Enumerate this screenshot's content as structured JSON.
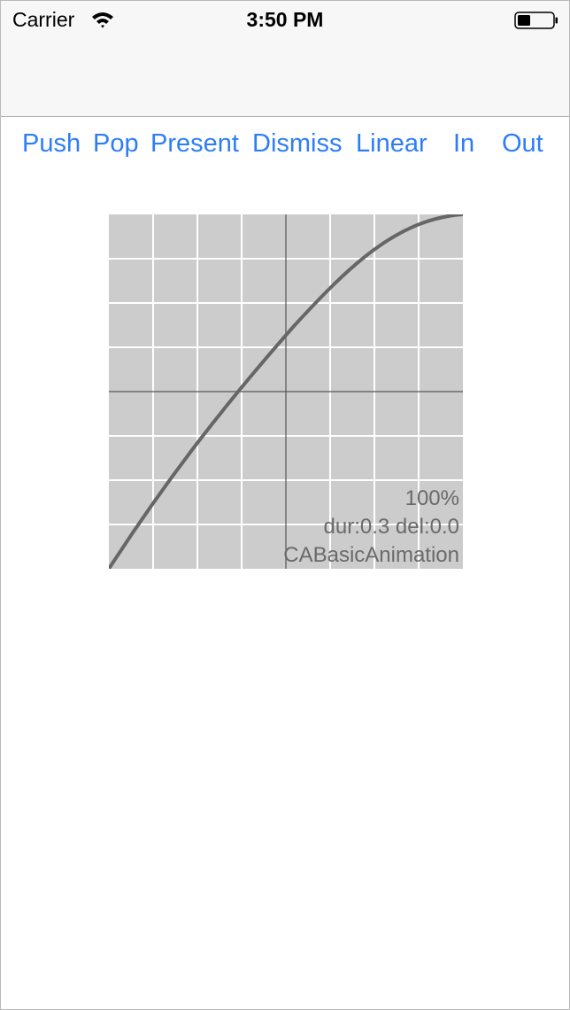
{
  "status_bar": {
    "carrier": "Carrier",
    "time": "3:50 PM",
    "icons": [
      "wifi-icon",
      "battery-icon"
    ]
  },
  "toolbar": {
    "buttons": [
      "Push",
      "Pop",
      "Present",
      "Dismiss",
      "Linear",
      "In",
      "Out"
    ],
    "color": "#2d7ef6"
  },
  "plot": {
    "percent": "100%",
    "timing": "dur:0.3 del:0.0",
    "animation_class": "CABasicAnimation",
    "background": "#cccccc",
    "grid_color": "#ffffff",
    "axis_color": "#555555",
    "curve_color": "#666666"
  }
}
